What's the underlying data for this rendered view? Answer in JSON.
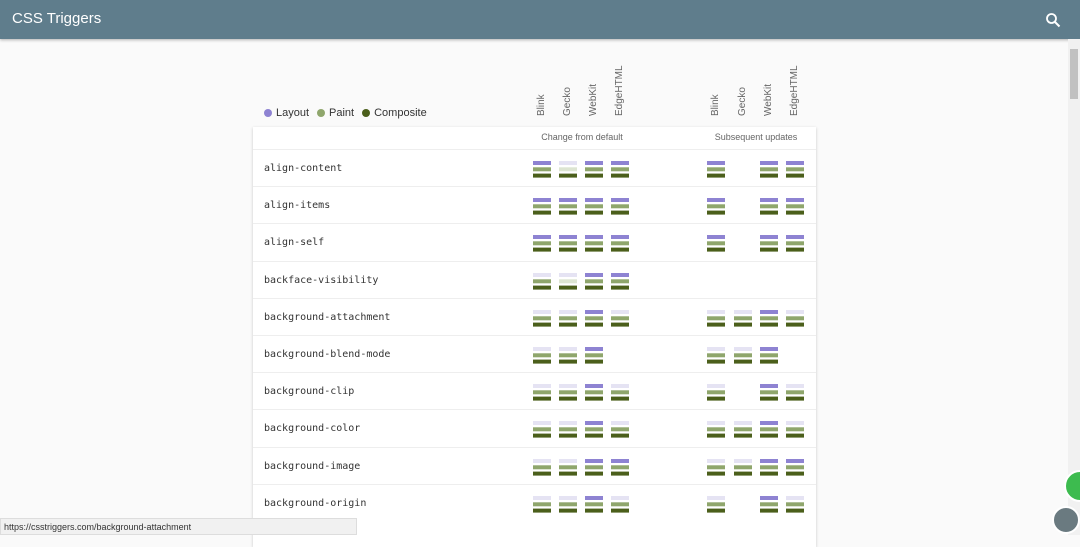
{
  "header": {
    "title": "CSS Triggers"
  },
  "legend": [
    {
      "label": "Layout",
      "color": "#8e83d2"
    },
    {
      "label": "Paint",
      "color": "#8fa66c"
    },
    {
      "label": "Composite",
      "color": "#4b5f1b"
    }
  ],
  "engines": [
    "Blink",
    "Gecko",
    "WebKit",
    "EdgeHTML"
  ],
  "groups": [
    "Change from default",
    "Subsequent updates"
  ],
  "rows": [
    {
      "property": "align-content",
      "initial": [
        [
          1,
          1,
          1
        ],
        [
          0,
          0,
          1
        ],
        [
          1,
          1,
          1
        ],
        [
          1,
          1,
          1
        ]
      ],
      "change": [
        [
          1,
          1,
          1
        ],
        null,
        [
          1,
          1,
          1
        ],
        [
          1,
          1,
          1
        ]
      ]
    },
    {
      "property": "align-items",
      "initial": [
        [
          1,
          1,
          1
        ],
        [
          1,
          1,
          1
        ],
        [
          1,
          1,
          1
        ],
        [
          1,
          1,
          1
        ]
      ],
      "change": [
        [
          1,
          1,
          1
        ],
        null,
        [
          1,
          1,
          1
        ],
        [
          1,
          1,
          1
        ]
      ]
    },
    {
      "property": "align-self",
      "initial": [
        [
          1,
          1,
          1
        ],
        [
          1,
          1,
          1
        ],
        [
          1,
          1,
          1
        ],
        [
          1,
          1,
          1
        ]
      ],
      "change": [
        [
          1,
          1,
          1
        ],
        null,
        [
          1,
          1,
          1
        ],
        [
          1,
          1,
          1
        ]
      ]
    },
    {
      "property": "backface-visibility",
      "initial": [
        [
          0,
          1,
          1
        ],
        [
          0,
          0,
          1
        ],
        [
          1,
          1,
          1
        ],
        [
          1,
          1,
          1
        ]
      ],
      "change": [
        null,
        null,
        null,
        null
      ]
    },
    {
      "property": "background-attachment",
      "initial": [
        [
          0,
          1,
          1
        ],
        [
          0,
          1,
          1
        ],
        [
          1,
          1,
          1
        ],
        [
          0,
          1,
          1
        ]
      ],
      "change": [
        [
          0,
          1,
          1
        ],
        [
          0,
          1,
          1
        ],
        [
          1,
          1,
          1
        ],
        [
          0,
          1,
          1
        ]
      ]
    },
    {
      "property": "background-blend-mode",
      "initial": [
        [
          0,
          1,
          1
        ],
        [
          0,
          1,
          1
        ],
        [
          1,
          1,
          1
        ],
        null
      ],
      "change": [
        [
          0,
          1,
          1
        ],
        [
          0,
          1,
          1
        ],
        [
          1,
          1,
          1
        ],
        null
      ]
    },
    {
      "property": "background-clip",
      "initial": [
        [
          0,
          1,
          1
        ],
        [
          0,
          1,
          1
        ],
        [
          1,
          1,
          1
        ],
        [
          0,
          1,
          1
        ]
      ],
      "change": [
        [
          0,
          1,
          1
        ],
        null,
        [
          1,
          1,
          1
        ],
        [
          0,
          1,
          1
        ]
      ]
    },
    {
      "property": "background-color",
      "initial": [
        [
          0,
          1,
          1
        ],
        [
          0,
          1,
          1
        ],
        [
          1,
          1,
          1
        ],
        [
          0,
          1,
          1
        ]
      ],
      "change": [
        [
          0,
          1,
          1
        ],
        [
          0,
          1,
          1
        ],
        [
          1,
          1,
          1
        ],
        [
          0,
          1,
          1
        ]
      ]
    },
    {
      "property": "background-image",
      "initial": [
        [
          0,
          1,
          1
        ],
        [
          0,
          1,
          1
        ],
        [
          1,
          1,
          1
        ],
        [
          1,
          1,
          1
        ]
      ],
      "change": [
        [
          0,
          1,
          1
        ],
        [
          0,
          1,
          1
        ],
        [
          1,
          1,
          1
        ],
        [
          1,
          1,
          1
        ]
      ]
    },
    {
      "property": "background-origin",
      "initial": [
        [
          0,
          1,
          1
        ],
        [
          0,
          1,
          1
        ],
        [
          1,
          1,
          1
        ],
        [
          0,
          1,
          1
        ]
      ],
      "change": [
        [
          0,
          1,
          1
        ],
        null,
        [
          1,
          1,
          1
        ],
        [
          0,
          1,
          1
        ]
      ]
    }
  ],
  "status": "https://csstriggers.com/background-attachment"
}
